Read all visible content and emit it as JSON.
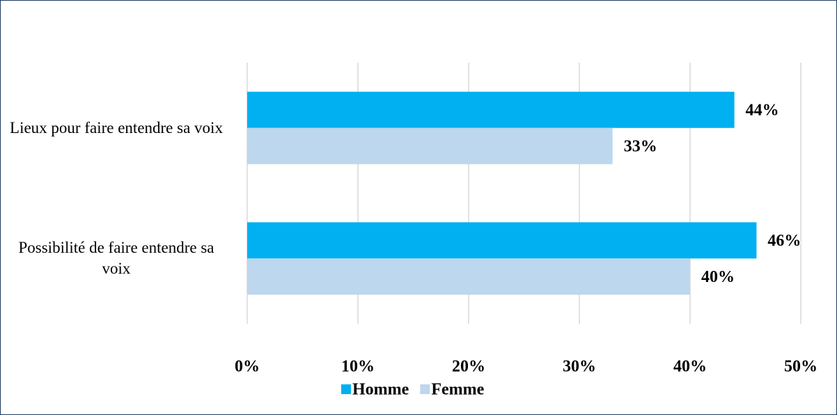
{
  "chart_data": {
    "type": "bar",
    "orientation": "horizontal",
    "categories": [
      "Lieux pour faire entendre sa voix",
      "Possibilité de faire entendre sa voix"
    ],
    "series": [
      {
        "name": "Homme",
        "color": "#00b0f0",
        "values": [
          44,
          46
        ],
        "value_labels": [
          "44%",
          "46%"
        ]
      },
      {
        "name": "Femme",
        "color": "#bdd7ee",
        "values": [
          33,
          40
        ],
        "value_labels": [
          "33%",
          "40%"
        ]
      }
    ],
    "xlim": [
      0,
      50
    ],
    "xticks": [
      {
        "value": 0,
        "label": "0%"
      },
      {
        "value": 10,
        "label": "10%"
      },
      {
        "value": 20,
        "label": "20%"
      },
      {
        "value": 30,
        "label": "30%"
      },
      {
        "value": 40,
        "label": "40%"
      },
      {
        "value": 50,
        "label": "50%"
      }
    ],
    "grid": true,
    "legend": "bottom"
  }
}
